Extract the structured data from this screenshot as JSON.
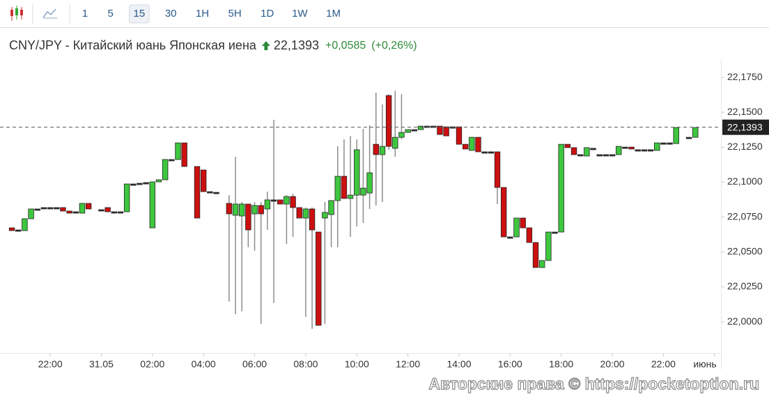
{
  "chart_data": {
    "type": "candlestick",
    "toolbar": {
      "intervals": [
        "1",
        "5",
        "15",
        "30",
        "1H",
        "5H",
        "1D",
        "1W",
        "1M"
      ],
      "selected": 2
    },
    "title": "CNY/JPY - Китайский юань Японская иена",
    "change": "+0,0585",
    "change_pct": "(+0,26%)",
    "last_price": {
      "value": 22.1393,
      "label": "22,1393"
    },
    "watermark": "Авторские права © https://pocketoption.ru",
    "up_color": "#3ec73e",
    "down_color": "#cc1010",
    "wick_color": "#8c8c8c",
    "x": [
      "20:30",
      "20:45",
      "21:00",
      "21:15",
      "21:30",
      "21:45",
      "22:00",
      "22:15",
      "22:30",
      "22:45",
      "23:00",
      "23:15",
      "23:30",
      "23:45",
      "00:00",
      "00:15",
      "00:30",
      "00:45",
      "01:00",
      "01:15",
      "01:30",
      "01:45",
      "02:00",
      "02:15",
      "02:30",
      "02:45",
      "03:00",
      "03:15",
      "03:30",
      "03:45",
      "04:00",
      "04:15",
      "04:30",
      "04:45",
      "05:00",
      "05:15",
      "05:30",
      "05:45",
      "06:00",
      "06:15",
      "06:30",
      "06:45",
      "07:00",
      "07:15",
      "07:30",
      "07:45",
      "08:00",
      "08:15",
      "08:30",
      "08:45",
      "09:00",
      "09:15",
      "09:30",
      "09:45",
      "10:00",
      "10:15",
      "10:30",
      "10:45",
      "11:00",
      "11:15",
      "11:30",
      "11:45",
      "12:00",
      "12:15",
      "12:30",
      "12:45",
      "13:00",
      "13:15",
      "13:30",
      "13:45",
      "14:00",
      "14:15",
      "14:30",
      "14:45",
      "15:00",
      "15:15",
      "15:30",
      "15:45",
      "16:00",
      "16:15",
      "16:30",
      "16:45",
      "17:00",
      "17:15",
      "17:30",
      "17:45",
      "18:00",
      "18:15",
      "18:30",
      "18:45",
      "19:00",
      "19:15",
      "19:30",
      "19:45",
      "20:00",
      "20:15",
      "20:30",
      "20:45",
      "21:00",
      "21:15",
      "21:30",
      "21:45",
      "22:00",
      "22:15",
      "22:30",
      "22:45",
      "23:00",
      "23:15",
      "23:30",
      "23:45",
      "00:00"
    ],
    "open": [
      22.0673,
      22.0658,
      22.0653,
      22.0738,
      22.0808,
      22.0818,
      22.0818,
      22.0818,
      22.0818,
      22.0793,
      22.0788,
      22.0778,
      22.0848,
      null,
      22.0803,
      22.0818,
      22.0788,
      22.0788,
      22.0788,
      22.0987,
      22.0992,
      22.0997,
      22.0673,
      22.1002,
      22.1017,
      22.1162,
      22.1162,
      22.1281,
      null,
      22.1112,
      22.1087,
      22.0932,
      22.0927,
      null,
      22.0848,
      22.0763,
      22.0758,
      22.0843,
      22.0773,
      22.0833,
      22.0808,
      22.0873,
      22.0873,
      22.0843,
      22.0897,
      22.0818,
      22.0743,
      22.0808,
      22.0643,
      22.0743,
      22.0768,
      22.0868,
      22.1042,
      22.0883,
      22.0907,
      22.0907,
      22.0922,
      22.1271,
      22.1197,
      22.162,
      22.1242,
      22.1321,
      22.1356,
      22.1376,
      22.1376,
      22.1401,
      22.1401,
      22.1401,
      22.1396,
      22.1396,
      22.1396,
      22.1271,
      22.1227,
      22.1321,
      22.1217,
      22.1217,
      22.1217,
      22.0962,
      22.0608,
      22.0608,
      22.0743,
      22.0673,
      22.0568,
      22.0389,
      22.0439,
      22.0643,
      22.0643,
      22.1271,
      22.1247,
      22.1197,
      22.1187,
      22.1242,
      22.1197,
      22.1197,
      22.1197,
      22.1197,
      22.1251,
      22.1251,
      22.1232,
      22.1232,
      22.1232,
      22.1227,
      22.1281,
      22.1281,
      22.1276,
      null,
      22.1321,
      22.1321,
      null,
      null,
      null
    ],
    "high": [
      22.0673,
      22.0658,
      22.0738,
      22.0808,
      22.0808,
      22.0818,
      22.0818,
      22.0818,
      22.0818,
      22.0793,
      22.0788,
      22.0848,
      22.0848,
      null,
      22.0803,
      22.0818,
      22.0788,
      22.0788,
      22.0987,
      22.0987,
      22.0992,
      22.0997,
      22.1002,
      22.1017,
      22.1162,
      22.1162,
      22.1281,
      22.1281,
      null,
      22.1112,
      22.1087,
      22.0932,
      22.0927,
      null,
      22.0907,
      22.1182,
      22.0858,
      22.0843,
      22.0858,
      22.0858,
      22.0932,
      22.1446,
      22.0873,
      22.0907,
      22.0917,
      22.0818,
      22.0818,
      22.0818,
      22.0643,
      22.0858,
      22.0868,
      22.1256,
      22.1306,
      22.1331,
      22.1306,
      22.1381,
      22.1406,
      22.164,
      22.1556,
      22.163,
      22.1655,
      22.163,
      22.1376,
      22.1376,
      22.1401,
      22.1401,
      22.1401,
      22.1401,
      22.1396,
      22.1396,
      22.1396,
      22.1271,
      22.1321,
      22.1321,
      22.1217,
      22.1217,
      22.1217,
      22.0962,
      22.0608,
      22.0743,
      22.0743,
      22.0673,
      22.0568,
      22.0439,
      22.0643,
      22.0643,
      22.1271,
      22.1271,
      22.1247,
      22.1197,
      22.1247,
      22.1242,
      22.1197,
      22.1197,
      22.1197,
      22.1256,
      22.1251,
      22.1251,
      22.1232,
      22.1232,
      22.1232,
      22.1281,
      22.1281,
      22.1281,
      22.1391,
      null,
      22.1321,
      22.1391,
      null,
      null,
      null
    ],
    "low": [
      22.0653,
      22.0658,
      22.0653,
      22.0738,
      22.0808,
      22.0818,
      22.0818,
      22.0818,
      22.0793,
      22.0778,
      22.0788,
      22.0778,
      22.0808,
      null,
      22.0803,
      22.0788,
      22.0788,
      22.0788,
      22.0788,
      22.0987,
      22.0992,
      22.0997,
      22.0673,
      22.1002,
      22.1017,
      22.1162,
      22.1162,
      22.1112,
      null,
      22.0743,
      22.0932,
      22.0932,
      22.0927,
      null,
      22.0145,
      22.0055,
      22.0075,
      22.0534,
      22.0509,
      21.9985,
      22.0658,
      22.0135,
      22.0843,
      22.0558,
      22.0608,
      22.0743,
      22.0035,
      21.995,
      21.9975,
      21.9985,
      22.0534,
      22.0534,
      22.0883,
      22.0608,
      22.0683,
      22.0708,
      22.0808,
      22.0833,
      22.0858,
      22.1232,
      22.1182,
      22.1306,
      22.1356,
      22.1376,
      22.1376,
      22.1401,
      22.1401,
      22.1341,
      22.1331,
      22.1396,
      22.1271,
      22.1237,
      22.1227,
      22.1217,
      22.1217,
      22.1217,
      22.0843,
      22.0608,
      22.0608,
      22.0608,
      22.0673,
      22.0568,
      22.0389,
      22.0389,
      22.0439,
      22.0643,
      22.0643,
      22.1247,
      22.1197,
      22.1197,
      22.1187,
      22.1242,
      22.1197,
      22.1197,
      22.1197,
      22.1197,
      22.1251,
      22.1237,
      22.1232,
      22.1232,
      22.1232,
      22.1227,
      22.1281,
      22.1281,
      22.1276,
      null,
      22.1321,
      22.1321,
      null,
      null,
      null
    ],
    "close": [
      22.0653,
      22.0658,
      22.0738,
      22.0808,
      22.0808,
      22.0818,
      22.0818,
      22.0818,
      22.0793,
      22.0778,
      22.0788,
      22.0848,
      22.0808,
      null,
      22.0803,
      22.0788,
      22.0788,
      22.0788,
      22.0987,
      22.0987,
      22.0992,
      22.0997,
      22.1002,
      22.1017,
      22.1162,
      22.1162,
      22.1281,
      22.1112,
      null,
      22.0743,
      22.0932,
      22.0932,
      22.0927,
      null,
      22.0773,
      22.0843,
      22.0843,
      22.0658,
      22.0833,
      22.0773,
      22.0873,
      22.0873,
      22.0843,
      22.0897,
      22.0818,
      22.0743,
      22.0808,
      22.0658,
      21.9975,
      22.0783,
      22.0868,
      22.1042,
      22.0883,
      22.0907,
      22.1232,
      22.0957,
      22.1067,
      22.1197,
      22.1256,
      22.1256,
      22.1321,
      22.1356,
      22.1376,
      22.1376,
      22.1401,
      22.1401,
      22.1401,
      22.1341,
      22.1331,
      22.1396,
      22.1271,
      22.1237,
      22.1321,
      22.1217,
      22.1217,
      22.1217,
      22.0962,
      22.0608,
      22.0608,
      22.0743,
      22.0673,
      22.0568,
      22.0389,
      22.0439,
      22.0643,
      22.0643,
      22.1271,
      22.1247,
      22.1197,
      22.1197,
      22.1247,
      22.1242,
      22.1197,
      22.1197,
      22.1197,
      22.1256,
      22.1251,
      22.1237,
      22.1232,
      22.1232,
      22.1232,
      22.1281,
      22.1281,
      22.1281,
      22.1391,
      null,
      22.1321,
      22.1391,
      null,
      null,
      null
    ],
    "xticks": [
      "22:00",
      {
        "value": "00:00",
        "label": "31.05"
      },
      "02:00",
      "04:00",
      "06:00",
      "08:00",
      "10:00",
      "12:00",
      "14:00",
      "16:00",
      "18:00",
      "20:00",
      "22:00",
      {
        "value": "00:00",
        "label": "июнь"
      }
    ],
    "ylim": [
      21.9786,
      22.188
    ],
    "yticks": [
      {
        "value": 22.0,
        "label": "22,0000"
      },
      {
        "value": 22.025,
        "label": "22,0250"
      },
      {
        "value": 22.05,
        "label": "22,0500"
      },
      {
        "value": 22.075,
        "label": "22,0750"
      },
      {
        "value": 22.1,
        "label": "22,1000"
      },
      {
        "value": 22.125,
        "label": "22,1250"
      },
      {
        "value": 22.15,
        "label": "22,1500"
      },
      {
        "value": 22.175,
        "label": "22,1750"
      }
    ]
  }
}
